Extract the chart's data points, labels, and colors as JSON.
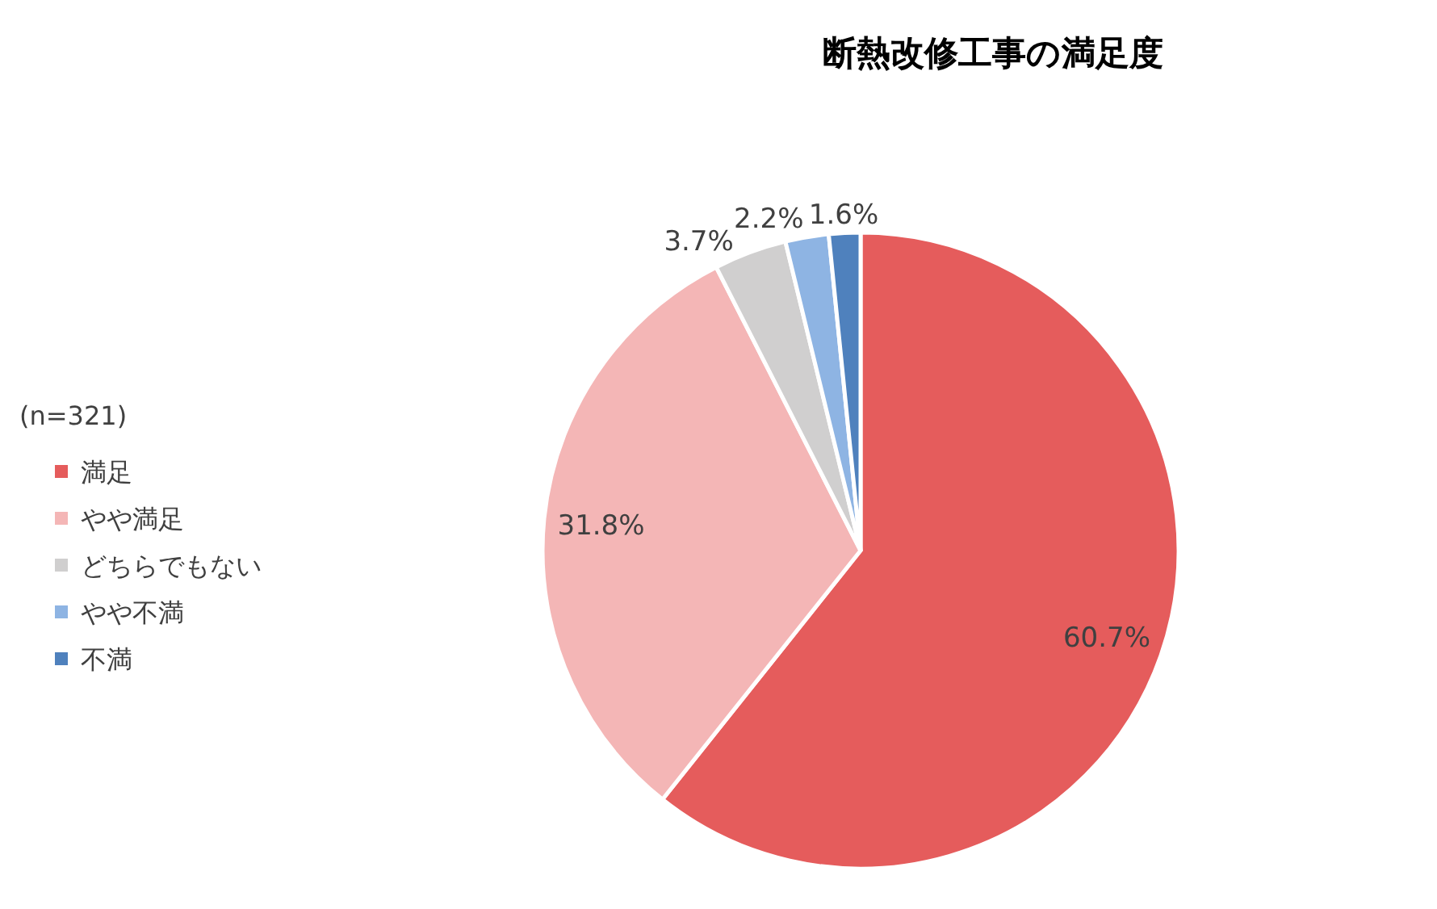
{
  "chart_data": {
    "type": "pie",
    "title": "断熱改修工事の満足度",
    "legend_title": "(n=321)",
    "legend": "left",
    "categories": [
      "満足",
      "やや満足",
      "どちらでもない",
      "やや不満",
      "不満"
    ],
    "values": [
      60.7,
      31.8,
      3.7,
      2.2,
      1.6
    ],
    "value_labels": [
      "60.7%",
      "31.8%",
      "3.7%",
      "2.2%",
      "1.6%"
    ],
    "colors": [
      "#e55c5c",
      "#f4b6b6",
      "#d0cfcf",
      "#8eb4e3",
      "#4f81bd"
    ]
  }
}
